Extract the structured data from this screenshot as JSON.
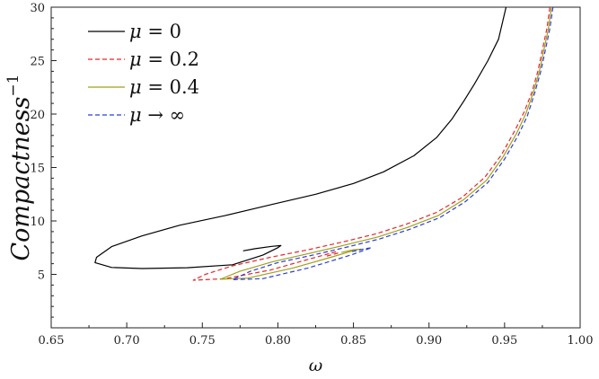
{
  "chart_data": {
    "type": "line",
    "title": "",
    "xlabel": "ω",
    "ylabel": "Compactness",
    "ylabel_superscript": "−1",
    "xlim": [
      0.65,
      1.0
    ],
    "ylim": [
      0,
      30
    ],
    "x_ticks": [
      "0.65",
      "0.70",
      "0.75",
      "0.80",
      "0.85",
      "0.90",
      "0.95",
      "1.00"
    ],
    "y_ticks": [
      "5",
      "10",
      "15",
      "20",
      "25",
      "30"
    ],
    "grid": false,
    "legend_position": "top-left",
    "series": [
      {
        "name": "μ = 0",
        "color": "#000000",
        "dash": "solid",
        "points": [
          [
            0.951,
            30
          ],
          [
            0.946,
            27
          ],
          [
            0.939,
            25
          ],
          [
            0.93,
            22.8
          ],
          [
            0.923,
            21.2
          ],
          [
            0.915,
            19.5
          ],
          [
            0.905,
            17.8
          ],
          [
            0.89,
            16.1
          ],
          [
            0.87,
            14.6
          ],
          [
            0.85,
            13.5
          ],
          [
            0.825,
            12.5
          ],
          [
            0.795,
            11.5
          ],
          [
            0.765,
            10.5
          ],
          [
            0.735,
            9.6
          ],
          [
            0.71,
            8.6
          ],
          [
            0.69,
            7.6
          ],
          [
            0.68,
            6.6
          ],
          [
            0.679,
            6.1
          ],
          [
            0.69,
            5.65
          ],
          [
            0.71,
            5.55
          ],
          [
            0.74,
            5.62
          ],
          [
            0.77,
            5.9
          ],
          [
            0.79,
            6.8
          ],
          [
            0.8,
            7.5
          ],
          [
            0.802,
            7.7
          ],
          [
            0.796,
            7.62
          ],
          [
            0.785,
            7.4
          ],
          [
            0.777,
            7.2
          ]
        ]
      },
      {
        "name": "μ = 0.2",
        "color": "#e8262a",
        "dash": "dashed",
        "points": [
          [
            0.98,
            30
          ],
          [
            0.978,
            28
          ],
          [
            0.975,
            26
          ],
          [
            0.972,
            24
          ],
          [
            0.968,
            22
          ],
          [
            0.963,
            20.2
          ],
          [
            0.957,
            18.5
          ],
          [
            0.948,
            16.2
          ],
          [
            0.937,
            14.1
          ],
          [
            0.922,
            12.2
          ],
          [
            0.905,
            10.8
          ],
          [
            0.885,
            9.7
          ],
          [
            0.865,
            8.8
          ],
          [
            0.845,
            8.1
          ],
          [
            0.82,
            7.3
          ],
          [
            0.795,
            6.6
          ],
          [
            0.77,
            5.8
          ],
          [
            0.752,
            5.0
          ],
          [
            0.744,
            4.45
          ],
          [
            0.765,
            4.6
          ],
          [
            0.795,
            5.4
          ],
          [
            0.82,
            6.4
          ],
          [
            0.838,
            7.1
          ],
          [
            0.84,
            7.0
          ],
          [
            0.832,
            6.7
          ]
        ]
      },
      {
        "name": "μ = 0.4",
        "color": "#a0a11c",
        "dash": "solid",
        "points": [
          [
            0.981,
            30
          ],
          [
            0.979,
            28
          ],
          [
            0.976,
            26
          ],
          [
            0.973,
            24
          ],
          [
            0.969,
            22
          ],
          [
            0.964,
            20.0
          ],
          [
            0.958,
            18.2
          ],
          [
            0.949,
            16.0
          ],
          [
            0.938,
            13.8
          ],
          [
            0.923,
            12.0
          ],
          [
            0.906,
            10.5
          ],
          [
            0.886,
            9.4
          ],
          [
            0.866,
            8.5
          ],
          [
            0.846,
            7.8
          ],
          [
            0.822,
            7.0
          ],
          [
            0.797,
            6.2
          ],
          [
            0.775,
            5.3
          ],
          [
            0.762,
            4.55
          ],
          [
            0.78,
            4.65
          ],
          [
            0.81,
            5.6
          ],
          [
            0.835,
            6.6
          ],
          [
            0.852,
            7.3
          ],
          [
            0.855,
            7.35
          ],
          [
            0.85,
            7.3
          ],
          [
            0.842,
            7.05
          ]
        ]
      },
      {
        "name": "μ → ∞",
        "color": "#2c3fd8",
        "dash": "dashed",
        "points": [
          [
            0.982,
            30
          ],
          [
            0.98,
            28
          ],
          [
            0.977,
            26
          ],
          [
            0.974,
            24
          ],
          [
            0.97,
            22
          ],
          [
            0.965,
            19.8
          ],
          [
            0.959,
            18.0
          ],
          [
            0.95,
            15.8
          ],
          [
            0.939,
            13.6
          ],
          [
            0.924,
            11.8
          ],
          [
            0.907,
            10.3
          ],
          [
            0.887,
            9.2
          ],
          [
            0.867,
            8.3
          ],
          [
            0.847,
            7.6
          ],
          [
            0.823,
            6.8
          ],
          [
            0.8,
            6.1
          ],
          [
            0.782,
            5.3
          ],
          [
            0.77,
            4.5
          ],
          [
            0.79,
            4.6
          ],
          [
            0.82,
            5.6
          ],
          [
            0.848,
            6.8
          ],
          [
            0.862,
            7.5
          ],
          [
            0.858,
            7.4
          ],
          [
            0.848,
            7.1
          ]
        ]
      }
    ]
  }
}
